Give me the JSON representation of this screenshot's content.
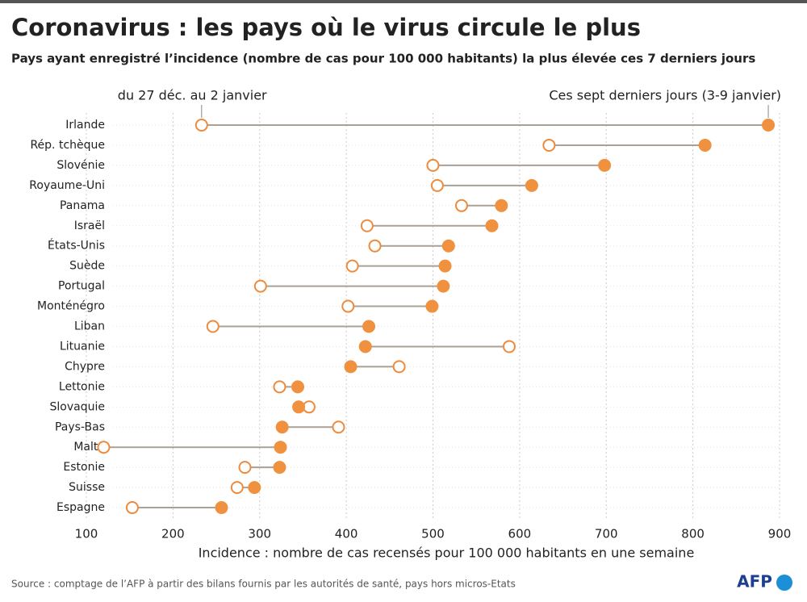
{
  "chart_data": {
    "type": "dumbbell",
    "title": "Coronavirus : les pays où le virus circule le plus",
    "subtitle": "Pays ayant enregistré l’incidence (nombre de cas pour 100 000 habitants) la plus élevée ces 7 derniers jours",
    "x_label": "Incidence : nombre de cas recensés pour 100 000 habitants en une semaine",
    "source": "Source : comptage de l’AFP à partir des bilans fournis par les autorités de santé, pays hors micros-Etats",
    "logo": "AFP",
    "categories": [
      "Irlande",
      "Rép. tchèque",
      "Slovénie",
      "Royaume-Uni",
      "Panama",
      "Israël",
      "États-Unis",
      "Suède",
      "Portugal",
      "Monténégro",
      "Liban",
      "Lituanie",
      "Chypre",
      "Lettonie",
      "Slovaquie",
      "Pays-Bas",
      "Malte",
      "Estonie",
      "Suisse",
      "Espagne"
    ],
    "series": [
      {
        "name": "du 27 déc. au 2 janvier",
        "color": "#ee8a3c",
        "filled": false,
        "values": [
          233,
          634,
          500,
          505,
          533,
          424,
          433,
          407,
          301,
          402,
          246,
          588,
          461,
          323,
          357,
          391,
          120,
          283,
          274,
          153
        ]
      },
      {
        "name": "Ces sept derniers jours (3-9 janvier)",
        "color": "#f0913f",
        "filled": true,
        "values": [
          887,
          814,
          698,
          614,
          579,
          568,
          518,
          514,
          512,
          499,
          426,
          422,
          405,
          344,
          345,
          326,
          324,
          323,
          294,
          256
        ]
      }
    ],
    "connector_color": "#a9a195",
    "xlim": [
      100,
      900
    ],
    "xticks": [
      100,
      200,
      300,
      400,
      500,
      600,
      700,
      800,
      900
    ],
    "grid": true
  }
}
